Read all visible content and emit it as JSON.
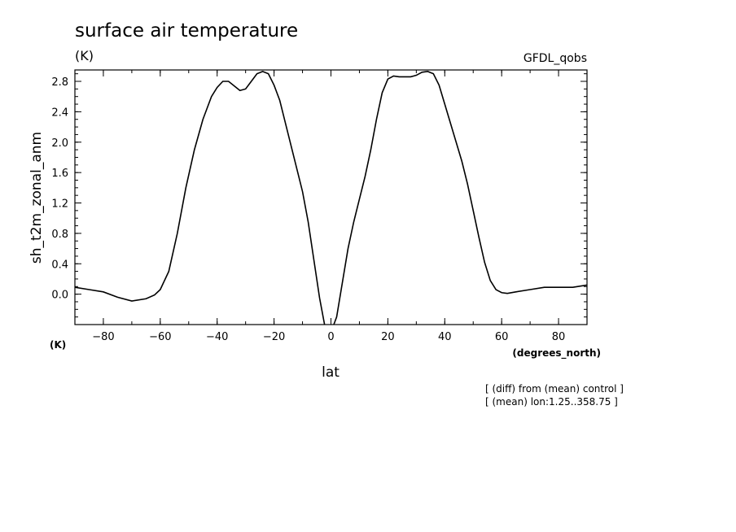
{
  "chart_data": {
    "type": "line",
    "title": "surface air temperature",
    "units_left": "(K)",
    "dataset": "GFDL_qobs",
    "ylabel": "sh_t2m_zonal_anm",
    "y_units": "(K)",
    "xlabel": "lat",
    "x_units": "(degrees_north)",
    "notes": [
      "[ (diff) from (mean) control ]",
      "[ (mean) lon:1.25..358.75 ]"
    ],
    "xlim": [
      -90,
      90
    ],
    "ylim": [
      -0.4,
      2.95
    ],
    "x_ticks": [
      -80,
      -60,
      -40,
      -20,
      0,
      20,
      40,
      60,
      80
    ],
    "y_ticks": [
      0.0,
      0.4,
      0.8,
      1.2,
      1.6,
      2.0,
      2.4,
      2.8
    ],
    "y_tick_labels": [
      "0.0",
      "0.4",
      "0.8",
      "1.2",
      "1.6",
      "2.0",
      "2.4",
      "2.8"
    ],
    "grid": false,
    "color": "#000000",
    "series": [
      {
        "x": [
          -90,
          -85,
          -80,
          -75,
          -70,
          -65,
          -62,
          -60,
          -57,
          -54,
          -51,
          -48,
          -45,
          -42,
          -40,
          -38,
          -36,
          -34,
          -32,
          -30,
          -28,
          -26,
          -24,
          -22,
          -20,
          -18,
          -16,
          -14,
          -12,
          -10,
          -8,
          -6,
          -4,
          -2,
          0,
          2,
          4,
          6,
          8,
          10,
          12,
          14,
          16,
          18,
          20,
          22,
          24,
          26,
          28,
          30,
          32,
          34,
          36,
          38,
          40,
          42,
          44,
          46,
          48,
          50,
          52,
          54,
          56,
          58,
          60,
          62,
          65,
          70,
          75,
          80,
          85,
          90
        ],
        "y": [
          0.09,
          0.06,
          0.03,
          -0.04,
          -0.09,
          -0.06,
          -0.01,
          0.06,
          0.3,
          0.8,
          1.4,
          1.9,
          2.3,
          2.6,
          2.72,
          2.8,
          2.8,
          2.74,
          2.68,
          2.7,
          2.8,
          2.9,
          2.93,
          2.9,
          2.75,
          2.55,
          2.25,
          1.95,
          1.65,
          1.35,
          0.95,
          0.45,
          -0.05,
          -0.45,
          -0.5,
          -0.3,
          0.15,
          0.6,
          0.95,
          1.25,
          1.55,
          1.9,
          2.3,
          2.65,
          2.83,
          2.87,
          2.86,
          2.86,
          2.86,
          2.88,
          2.92,
          2.93,
          2.9,
          2.75,
          2.5,
          2.25,
          2.0,
          1.75,
          1.45,
          1.1,
          0.75,
          0.42,
          0.18,
          0.06,
          0.02,
          0.01,
          0.03,
          0.06,
          0.09,
          0.09,
          0.09,
          0.12
        ]
      }
    ]
  }
}
